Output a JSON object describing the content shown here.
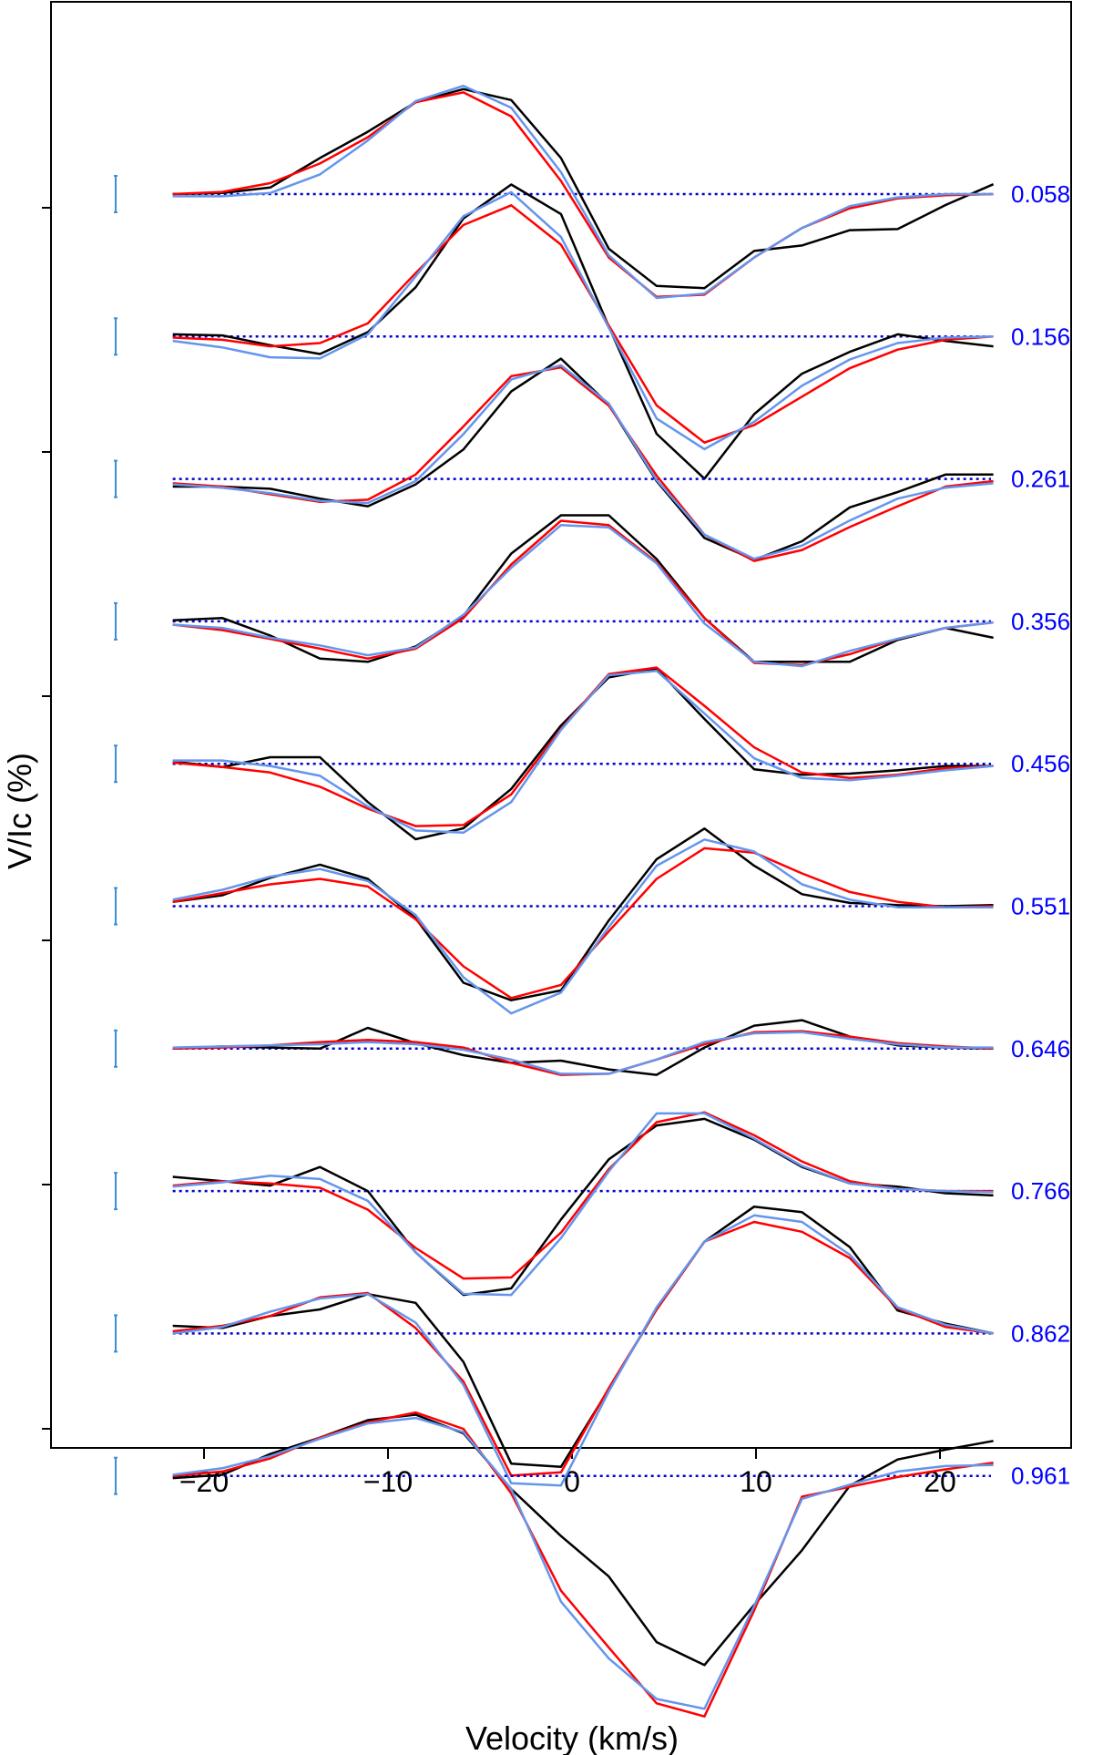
{
  "chart_data": {
    "type": "line",
    "title": "",
    "xlabel": "Velocity (km/s)",
    "ylabel": "V/Ic (%)",
    "xlim": [
      -28.5,
      28.5
    ],
    "x_ticks": [
      -20,
      -10,
      0,
      10,
      20
    ],
    "x_tick_labels": [
      "−20",
      "−10",
      "0",
      "10",
      "20"
    ],
    "grid": false,
    "legend": "none",
    "colors": {
      "observed": "#000000",
      "model_red": "#ff0000",
      "model_blue": "#6495ed",
      "baseline": "#0000cc",
      "phase_label": "#0000ff",
      "error_bar": "#3a8fd8"
    },
    "x": [
      -21.7,
      -19.0,
      -16.4,
      -13.7,
      -11.1,
      -8.5,
      -5.9,
      -3.3,
      -0.6,
      2.0,
      4.6,
      7.2,
      9.9,
      12.5,
      15.1,
      17.7,
      20.3,
      22.9
    ],
    "panels": [
      {
        "phase": "0.058",
        "observed": [
          0.0,
          0.01,
          0.06,
          0.33,
          0.57,
          0.84,
          0.96,
          0.86,
          0.33,
          -0.5,
          -0.84,
          -0.86,
          -0.52,
          -0.47,
          -0.33,
          -0.32,
          -0.1,
          0.09
        ],
        "model_red": [
          0.0,
          0.02,
          0.1,
          0.28,
          0.52,
          0.84,
          0.93,
          0.71,
          0.12,
          -0.58,
          -0.94,
          -0.92,
          -0.58,
          -0.31,
          -0.13,
          -0.04,
          -0.01,
          0.0
        ],
        "model_blue": [
          -0.02,
          -0.02,
          0.01,
          0.18,
          0.49,
          0.85,
          0.99,
          0.79,
          0.2,
          -0.56,
          -0.95,
          -0.91,
          -0.58,
          -0.31,
          -0.11,
          -0.03,
          0.0,
          0.0
        ]
      },
      {
        "phase": "0.156",
        "observed": [
          0.02,
          0.01,
          -0.08,
          -0.16,
          0.04,
          0.45,
          1.08,
          1.39,
          1.12,
          0.09,
          -0.89,
          -1.3,
          -0.71,
          -0.34,
          -0.14,
          0.02,
          -0.04,
          -0.09
        ],
        "model_red": [
          -0.01,
          -0.03,
          -0.09,
          -0.06,
          0.12,
          0.58,
          1.02,
          1.2,
          0.84,
          0.1,
          -0.63,
          -0.97,
          -0.81,
          -0.55,
          -0.29,
          -0.12,
          -0.03,
          0.0
        ],
        "model_blue": [
          -0.04,
          -0.1,
          -0.19,
          -0.2,
          0.02,
          0.55,
          1.1,
          1.32,
          0.91,
          0.08,
          -0.75,
          -1.03,
          -0.78,
          -0.45,
          -0.21,
          -0.06,
          -0.01,
          0.0
        ]
      },
      {
        "phase": "0.261",
        "observed": [
          -0.07,
          -0.07,
          -0.09,
          -0.18,
          -0.25,
          -0.05,
          0.27,
          0.8,
          1.1,
          0.68,
          -0.02,
          -0.54,
          -0.74,
          -0.57,
          -0.26,
          -0.12,
          0.04,
          0.04
        ],
        "model_red": [
          -0.04,
          -0.07,
          -0.14,
          -0.21,
          -0.19,
          0.04,
          0.48,
          0.94,
          1.02,
          0.67,
          0.03,
          -0.51,
          -0.75,
          -0.65,
          -0.44,
          -0.25,
          -0.07,
          -0.02
        ],
        "model_blue": [
          -0.05,
          -0.08,
          -0.13,
          -0.2,
          -0.22,
          -0.02,
          0.41,
          0.91,
          1.04,
          0.69,
          -0.01,
          -0.51,
          -0.73,
          -0.61,
          -0.38,
          -0.18,
          -0.08,
          -0.04
        ]
      },
      {
        "phase": "0.356",
        "observed": [
          0.01,
          0.03,
          -0.13,
          -0.34,
          -0.37,
          -0.23,
          0.05,
          0.62,
          0.97,
          0.97,
          0.57,
          0.03,
          -0.37,
          -0.37,
          -0.37,
          -0.17,
          -0.06,
          -0.15
        ],
        "model_red": [
          -0.03,
          -0.08,
          -0.16,
          -0.25,
          -0.34,
          -0.25,
          0.03,
          0.52,
          0.92,
          0.88,
          0.54,
          0.03,
          -0.38,
          -0.4,
          -0.3,
          -0.16,
          -0.06,
          -0.01
        ],
        "model_blue": [
          -0.03,
          -0.06,
          -0.15,
          -0.22,
          -0.31,
          -0.24,
          0.06,
          0.49,
          0.88,
          0.86,
          0.53,
          -0.02,
          -0.37,
          -0.41,
          -0.27,
          -0.16,
          -0.06,
          -0.01
        ]
      },
      {
        "phase": "0.456",
        "observed": [
          0.02,
          -0.03,
          0.06,
          0.06,
          -0.35,
          -0.69,
          -0.59,
          -0.23,
          0.35,
          0.79,
          0.87,
          0.41,
          -0.05,
          -0.1,
          -0.09,
          -0.06,
          -0.02,
          -0.02
        ],
        "model_red": [
          0.01,
          -0.03,
          -0.08,
          -0.21,
          -0.41,
          -0.57,
          -0.56,
          -0.28,
          0.32,
          0.82,
          0.88,
          0.53,
          0.15,
          -0.08,
          -0.13,
          -0.1,
          -0.04,
          -0.02
        ],
        "model_blue": [
          0.03,
          0.03,
          -0.02,
          -0.11,
          -0.39,
          -0.61,
          -0.63,
          -0.35,
          0.31,
          0.81,
          0.85,
          0.46,
          0.05,
          -0.13,
          -0.15,
          -0.11,
          -0.06,
          -0.02
        ]
      },
      {
        "phase": "0.551",
        "observed": [
          0.04,
          0.1,
          0.26,
          0.38,
          0.25,
          -0.11,
          -0.7,
          -0.86,
          -0.77,
          -0.13,
          0.43,
          0.71,
          0.37,
          0.11,
          0.03,
          0.01,
          0.0,
          0.01
        ],
        "model_red": [
          0.04,
          0.12,
          0.2,
          0.25,
          0.18,
          -0.12,
          -0.55,
          -0.84,
          -0.72,
          -0.23,
          0.25,
          0.53,
          0.49,
          0.3,
          0.13,
          0.04,
          -0.01,
          0.0
        ],
        "model_blue": [
          0.06,
          0.15,
          0.27,
          0.34,
          0.23,
          -0.08,
          -0.65,
          -0.98,
          -0.79,
          -0.19,
          0.37,
          0.61,
          0.5,
          0.2,
          0.06,
          -0.01,
          -0.01,
          -0.01
        ],
        "error_bar_only": false
      },
      {
        "phase": "0.646",
        "observed": [
          0.0,
          0.02,
          0.01,
          0.0,
          0.19,
          0.05,
          -0.06,
          -0.13,
          -0.11,
          -0.19,
          -0.24,
          0.01,
          0.21,
          0.26,
          0.11,
          0.03,
          0.01,
          0.0
        ],
        "model_red": [
          0.0,
          0.01,
          0.03,
          0.06,
          0.08,
          0.06,
          0.01,
          -0.13,
          -0.24,
          -0.23,
          -0.1,
          0.04,
          0.15,
          0.16,
          0.11,
          0.05,
          0.02,
          0.0
        ],
        "model_blue": [
          0.01,
          0.02,
          0.03,
          0.04,
          0.06,
          0.04,
          -0.01,
          -0.1,
          -0.23,
          -0.23,
          -0.1,
          0.06,
          0.14,
          0.15,
          0.09,
          0.04,
          0.01,
          0.01
        ]
      },
      {
        "phase": "0.766",
        "observed": [
          0.13,
          0.09,
          0.05,
          0.22,
          0.0,
          -0.56,
          -0.95,
          -0.89,
          -0.26,
          0.29,
          0.6,
          0.66,
          0.47,
          0.22,
          0.07,
          0.04,
          -0.02,
          -0.04
        ],
        "model_red": [
          0.05,
          0.09,
          0.07,
          0.03,
          -0.17,
          -0.52,
          -0.8,
          -0.79,
          -0.38,
          0.2,
          0.63,
          0.72,
          0.51,
          0.27,
          0.09,
          0.02,
          0.0,
          0.0
        ],
        "model_blue": [
          0.04,
          0.08,
          0.14,
          0.11,
          -0.09,
          -0.56,
          -0.94,
          -0.95,
          -0.43,
          0.18,
          0.71,
          0.71,
          0.48,
          0.23,
          0.07,
          0.02,
          0.0,
          -0.01
        ]
      },
      {
        "phase": "0.862",
        "observed": [
          0.07,
          0.05,
          0.16,
          0.22,
          0.36,
          0.28,
          -0.26,
          -1.19,
          -1.22,
          -0.51,
          0.22,
          0.84,
          1.16,
          1.11,
          0.79,
          0.21,
          0.09,
          0.0
        ],
        "model_red": [
          0.02,
          0.07,
          0.16,
          0.33,
          0.37,
          0.05,
          -0.44,
          -1.3,
          -1.27,
          -0.5,
          0.22,
          0.84,
          1.02,
          0.93,
          0.69,
          0.23,
          0.06,
          0.0
        ],
        "model_blue": [
          0.0,
          0.06,
          0.2,
          0.32,
          0.36,
          0.1,
          -0.47,
          -1.37,
          -1.39,
          -0.53,
          0.24,
          0.84,
          1.08,
          1.02,
          0.72,
          0.24,
          0.08,
          0.0
        ]
      },
      {
        "phase": "0.961",
        "observed": [
          -0.02,
          0.01,
          0.2,
          0.35,
          0.51,
          0.56,
          0.39,
          -0.12,
          -0.55,
          -0.92,
          -1.52,
          -1.73,
          -1.18,
          -0.68,
          -0.09,
          0.15,
          0.24,
          0.32
        ],
        "model_red": [
          0.0,
          0.04,
          0.16,
          0.35,
          0.49,
          0.58,
          0.43,
          -0.16,
          -1.05,
          -1.57,
          -2.08,
          -2.2,
          -1.23,
          -0.19,
          -0.1,
          -0.01,
          0.06,
          0.12
        ],
        "model_blue": [
          0.01,
          0.07,
          0.18,
          0.34,
          0.48,
          0.53,
          0.4,
          -0.12,
          -1.15,
          -1.67,
          -2.04,
          -2.13,
          -1.19,
          -0.21,
          -0.08,
          0.04,
          0.09,
          0.1
        ]
      }
    ]
  }
}
